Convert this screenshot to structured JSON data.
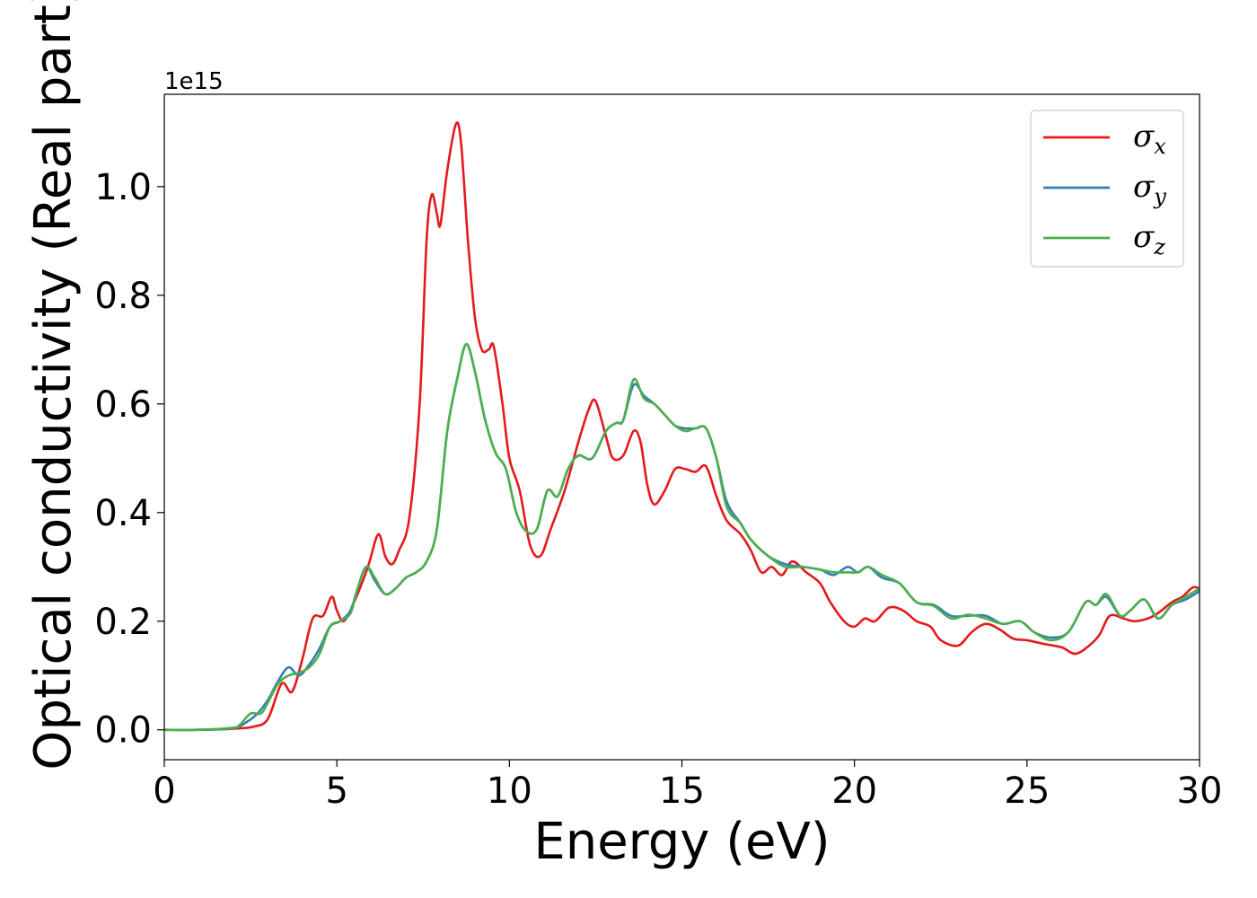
{
  "chart_data": {
    "type": "line",
    "xlabel": "Energy (eV)",
    "ylabel": "Optical conductivity (Real part)",
    "y_offset_text": "1e15",
    "xlim": [
      0,
      30
    ],
    "ylim": [
      -0.055,
      1.17
    ],
    "x_ticks": [
      0,
      5,
      10,
      15,
      20,
      25,
      30
    ],
    "x_tick_labels": [
      "0",
      "5",
      "10",
      "15",
      "20",
      "25",
      "30"
    ],
    "y_ticks": [
      0.0,
      0.2,
      0.4,
      0.6,
      0.8,
      1.0
    ],
    "y_tick_labels": [
      "0.0",
      "0.2",
      "0.4",
      "0.6",
      "0.8",
      "1.0"
    ],
    "grid": false,
    "legend_position": "top-right",
    "series": [
      {
        "name": "σ",
        "subscript": "x",
        "color": "#e41a1c",
        "points": [
          [
            0,
            0
          ],
          [
            1,
            0
          ],
          [
            2,
            0.002
          ],
          [
            2.6,
            0.006
          ],
          [
            3.0,
            0.02
          ],
          [
            3.4,
            0.085
          ],
          [
            3.7,
            0.07
          ],
          [
            4.0,
            0.13
          ],
          [
            4.3,
            0.205
          ],
          [
            4.6,
            0.21
          ],
          [
            4.85,
            0.245
          ],
          [
            5.0,
            0.22
          ],
          [
            5.2,
            0.2
          ],
          [
            5.5,
            0.235
          ],
          [
            5.9,
            0.3
          ],
          [
            6.2,
            0.36
          ],
          [
            6.4,
            0.32
          ],
          [
            6.6,
            0.305
          ],
          [
            6.8,
            0.33
          ],
          [
            7.1,
            0.39
          ],
          [
            7.4,
            0.6
          ],
          [
            7.6,
            0.9
          ],
          [
            7.75,
            0.985
          ],
          [
            7.9,
            0.95
          ],
          [
            8.0,
            0.93
          ],
          [
            8.2,
            1.03
          ],
          [
            8.45,
            1.115
          ],
          [
            8.6,
            1.08
          ],
          [
            8.8,
            0.9
          ],
          [
            9.0,
            0.76
          ],
          [
            9.2,
            0.7
          ],
          [
            9.4,
            0.7
          ],
          [
            9.55,
            0.705
          ],
          [
            9.8,
            0.6
          ],
          [
            10.0,
            0.5
          ],
          [
            10.3,
            0.44
          ],
          [
            10.6,
            0.34
          ],
          [
            10.9,
            0.32
          ],
          [
            11.2,
            0.37
          ],
          [
            11.6,
            0.44
          ],
          [
            12.0,
            0.53
          ],
          [
            12.3,
            0.59
          ],
          [
            12.5,
            0.605
          ],
          [
            12.8,
            0.54
          ],
          [
            13.0,
            0.5
          ],
          [
            13.3,
            0.505
          ],
          [
            13.6,
            0.55
          ],
          [
            13.8,
            0.53
          ],
          [
            14.0,
            0.45
          ],
          [
            14.2,
            0.415
          ],
          [
            14.5,
            0.44
          ],
          [
            14.8,
            0.48
          ],
          [
            15.1,
            0.48
          ],
          [
            15.4,
            0.475
          ],
          [
            15.7,
            0.485
          ],
          [
            16.0,
            0.43
          ],
          [
            16.3,
            0.385
          ],
          [
            16.7,
            0.36
          ],
          [
            17.0,
            0.33
          ],
          [
            17.3,
            0.29
          ],
          [
            17.6,
            0.3
          ],
          [
            17.9,
            0.285
          ],
          [
            18.2,
            0.31
          ],
          [
            18.6,
            0.29
          ],
          [
            19.0,
            0.27
          ],
          [
            19.3,
            0.235
          ],
          [
            19.7,
            0.2
          ],
          [
            20.0,
            0.19
          ],
          [
            20.3,
            0.205
          ],
          [
            20.6,
            0.2
          ],
          [
            21.0,
            0.225
          ],
          [
            21.4,
            0.22
          ],
          [
            21.8,
            0.2
          ],
          [
            22.2,
            0.19
          ],
          [
            22.5,
            0.165
          ],
          [
            23.0,
            0.155
          ],
          [
            23.4,
            0.18
          ],
          [
            23.8,
            0.195
          ],
          [
            24.2,
            0.185
          ],
          [
            24.6,
            0.168
          ],
          [
            25.0,
            0.165
          ],
          [
            25.5,
            0.158
          ],
          [
            26.0,
            0.152
          ],
          [
            26.4,
            0.14
          ],
          [
            26.8,
            0.155
          ],
          [
            27.1,
            0.175
          ],
          [
            27.4,
            0.21
          ],
          [
            27.8,
            0.205
          ],
          [
            28.1,
            0.2
          ],
          [
            28.5,
            0.205
          ],
          [
            28.8,
            0.215
          ],
          [
            29.2,
            0.235
          ],
          [
            29.5,
            0.245
          ],
          [
            29.8,
            0.262
          ],
          [
            30.0,
            0.26
          ]
        ]
      },
      {
        "name": "σ",
        "subscript": "y",
        "color": "#377eb8",
        "points": [
          [
            0,
            0
          ],
          [
            1,
            0
          ],
          [
            2,
            0.003
          ],
          [
            2.4,
            0.015
          ],
          [
            2.7,
            0.03
          ],
          [
            3.0,
            0.055
          ],
          [
            3.3,
            0.09
          ],
          [
            3.6,
            0.115
          ],
          [
            3.9,
            0.1
          ],
          [
            4.2,
            0.12
          ],
          [
            4.5,
            0.15
          ],
          [
            4.8,
            0.19
          ],
          [
            5.1,
            0.2
          ],
          [
            5.4,
            0.22
          ],
          [
            5.6,
            0.26
          ],
          [
            5.85,
            0.3
          ],
          [
            6.1,
            0.275
          ],
          [
            6.4,
            0.25
          ],
          [
            6.7,
            0.26
          ],
          [
            7.0,
            0.28
          ],
          [
            7.3,
            0.29
          ],
          [
            7.6,
            0.31
          ],
          [
            7.9,
            0.37
          ],
          [
            8.2,
            0.55
          ],
          [
            8.5,
            0.65
          ],
          [
            8.75,
            0.71
          ],
          [
            9.0,
            0.66
          ],
          [
            9.3,
            0.57
          ],
          [
            9.6,
            0.51
          ],
          [
            9.9,
            0.48
          ],
          [
            10.2,
            0.4
          ],
          [
            10.5,
            0.365
          ],
          [
            10.8,
            0.37
          ],
          [
            11.1,
            0.44
          ],
          [
            11.4,
            0.43
          ],
          [
            11.7,
            0.48
          ],
          [
            12.0,
            0.505
          ],
          [
            12.4,
            0.5
          ],
          [
            12.8,
            0.55
          ],
          [
            13.1,
            0.565
          ],
          [
            13.3,
            0.57
          ],
          [
            13.6,
            0.635
          ],
          [
            13.9,
            0.615
          ],
          [
            14.2,
            0.6
          ],
          [
            14.5,
            0.58
          ],
          [
            14.8,
            0.56
          ],
          [
            15.1,
            0.555
          ],
          [
            15.4,
            0.555
          ],
          [
            15.7,
            0.555
          ],
          [
            16.0,
            0.5
          ],
          [
            16.3,
            0.42
          ],
          [
            16.7,
            0.38
          ],
          [
            17.0,
            0.35
          ],
          [
            17.5,
            0.32
          ],
          [
            18.0,
            0.305
          ],
          [
            18.5,
            0.3
          ],
          [
            19.0,
            0.295
          ],
          [
            19.4,
            0.285
          ],
          [
            19.8,
            0.3
          ],
          [
            20.1,
            0.29
          ],
          [
            20.4,
            0.3
          ],
          [
            20.8,
            0.28
          ],
          [
            21.3,
            0.27
          ],
          [
            21.8,
            0.235
          ],
          [
            22.3,
            0.23
          ],
          [
            22.8,
            0.21
          ],
          [
            23.3,
            0.21
          ],
          [
            23.8,
            0.21
          ],
          [
            24.3,
            0.195
          ],
          [
            24.8,
            0.2
          ],
          [
            25.2,
            0.18
          ],
          [
            25.7,
            0.17
          ],
          [
            26.2,
            0.18
          ],
          [
            26.7,
            0.235
          ],
          [
            27.0,
            0.23
          ],
          [
            27.3,
            0.245
          ],
          [
            27.7,
            0.21
          ],
          [
            28.0,
            0.22
          ],
          [
            28.4,
            0.24
          ],
          [
            28.8,
            0.205
          ],
          [
            29.2,
            0.23
          ],
          [
            29.6,
            0.24
          ],
          [
            30.0,
            0.255
          ]
        ]
      },
      {
        "name": "σ",
        "subscript": "z",
        "color": "#4daf4a",
        "points": [
          [
            0,
            0
          ],
          [
            1,
            0
          ],
          [
            2,
            0.004
          ],
          [
            2.2,
            0.01
          ],
          [
            2.5,
            0.03
          ],
          [
            2.8,
            0.03
          ],
          [
            3.0,
            0.05
          ],
          [
            3.3,
            0.085
          ],
          [
            3.6,
            0.1
          ],
          [
            3.9,
            0.105
          ],
          [
            4.2,
            0.115
          ],
          [
            4.5,
            0.14
          ],
          [
            4.8,
            0.19
          ],
          [
            5.1,
            0.2
          ],
          [
            5.4,
            0.215
          ],
          [
            5.6,
            0.26
          ],
          [
            5.85,
            0.3
          ],
          [
            6.1,
            0.28
          ],
          [
            6.4,
            0.25
          ],
          [
            6.7,
            0.26
          ],
          [
            7.0,
            0.28
          ],
          [
            7.3,
            0.29
          ],
          [
            7.6,
            0.31
          ],
          [
            7.9,
            0.37
          ],
          [
            8.2,
            0.55
          ],
          [
            8.5,
            0.65
          ],
          [
            8.75,
            0.71
          ],
          [
            9.0,
            0.66
          ],
          [
            9.3,
            0.57
          ],
          [
            9.6,
            0.51
          ],
          [
            9.9,
            0.48
          ],
          [
            10.2,
            0.4
          ],
          [
            10.5,
            0.365
          ],
          [
            10.8,
            0.37
          ],
          [
            11.1,
            0.44
          ],
          [
            11.4,
            0.43
          ],
          [
            11.7,
            0.48
          ],
          [
            12.0,
            0.505
          ],
          [
            12.4,
            0.5
          ],
          [
            12.8,
            0.55
          ],
          [
            13.1,
            0.565
          ],
          [
            13.3,
            0.57
          ],
          [
            13.6,
            0.645
          ],
          [
            13.9,
            0.61
          ],
          [
            14.2,
            0.6
          ],
          [
            14.5,
            0.58
          ],
          [
            14.8,
            0.56
          ],
          [
            15.1,
            0.55
          ],
          [
            15.4,
            0.555
          ],
          [
            15.7,
            0.555
          ],
          [
            16.0,
            0.5
          ],
          [
            16.3,
            0.41
          ],
          [
            16.7,
            0.38
          ],
          [
            17.0,
            0.35
          ],
          [
            17.5,
            0.32
          ],
          [
            18.0,
            0.3
          ],
          [
            18.5,
            0.3
          ],
          [
            19.0,
            0.295
          ],
          [
            19.4,
            0.29
          ],
          [
            19.8,
            0.29
          ],
          [
            20.1,
            0.29
          ],
          [
            20.4,
            0.3
          ],
          [
            20.8,
            0.285
          ],
          [
            21.3,
            0.27
          ],
          [
            21.8,
            0.235
          ],
          [
            22.3,
            0.228
          ],
          [
            22.8,
            0.205
          ],
          [
            23.3,
            0.212
          ],
          [
            23.8,
            0.205
          ],
          [
            24.3,
            0.195
          ],
          [
            24.8,
            0.2
          ],
          [
            25.2,
            0.18
          ],
          [
            25.7,
            0.165
          ],
          [
            26.2,
            0.18
          ],
          [
            26.7,
            0.235
          ],
          [
            27.0,
            0.23
          ],
          [
            27.3,
            0.25
          ],
          [
            27.7,
            0.21
          ],
          [
            28.0,
            0.22
          ],
          [
            28.4,
            0.24
          ],
          [
            28.8,
            0.205
          ],
          [
            29.2,
            0.23
          ],
          [
            29.6,
            0.245
          ],
          [
            30.0,
            0.26
          ]
        ]
      }
    ]
  }
}
